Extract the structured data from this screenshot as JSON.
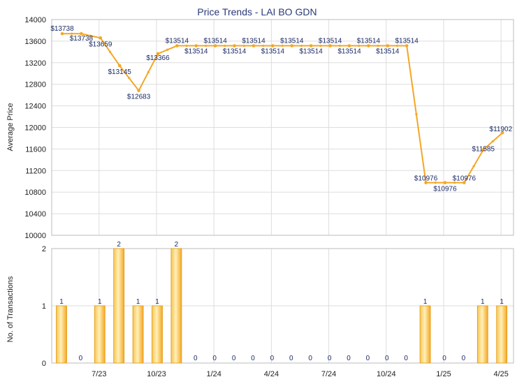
{
  "chart_data": [
    {
      "type": "line",
      "title": "Price Trends - LAI BO GDN",
      "ylabel": "Average Price",
      "ylim": [
        10000,
        14000
      ],
      "y_ticks": [
        10000,
        10400,
        10800,
        11200,
        11600,
        12000,
        12400,
        12800,
        13200,
        13600,
        14000
      ],
      "x_ticks": [
        "7/23",
        "10/23",
        "1/24",
        "4/24",
        "7/24",
        "10/24",
        "1/25",
        "4/25"
      ],
      "grid": true,
      "line_color": "#f5a623",
      "series": [
        {
          "values": [
            13738,
            13738,
            13659,
            13145,
            12683,
            13366,
            13514,
            13514,
            13514,
            13514,
            13514,
            13514,
            13514,
            13514,
            13514,
            13514,
            13514,
            13514,
            13514,
            10976,
            10976,
            10976,
            11585,
            11902
          ],
          "labels": [
            "$13738",
            "$13738",
            "$13659",
            "$13145",
            "$12683",
            "$13366",
            "$13514",
            "$13514",
            "$13514",
            "$13514",
            "$13514",
            "$13514",
            "$13514",
            "$13514",
            "$13514",
            "$13514",
            "$13514",
            "$13514",
            "$13514",
            "$10976",
            "$10976",
            "$10976",
            "$11585",
            "$11902"
          ]
        }
      ]
    },
    {
      "type": "bar",
      "ylabel": "No. of Transactions",
      "ylim": [
        0,
        2
      ],
      "y_ticks": [
        0,
        1,
        2
      ],
      "x_ticks": [
        "7/23",
        "10/23",
        "1/24",
        "4/24",
        "7/24",
        "10/24",
        "1/25",
        "4/25"
      ],
      "bar_color": "#f5a623",
      "values": [
        1,
        0,
        1,
        2,
        1,
        1,
        2,
        0,
        0,
        0,
        0,
        0,
        0,
        0,
        0,
        0,
        0,
        0,
        0,
        1,
        0,
        0,
        1,
        1
      ]
    }
  ]
}
